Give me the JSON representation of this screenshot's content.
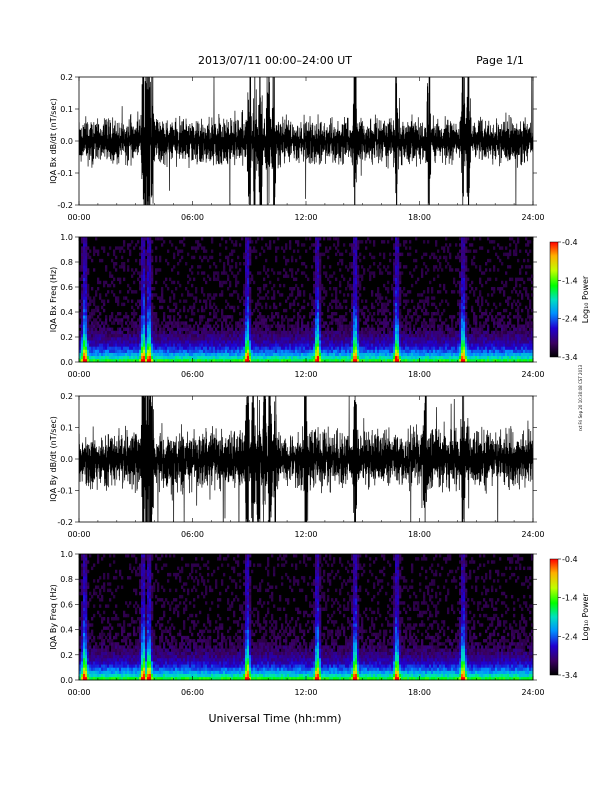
{
  "header": {
    "date_range": "2013/07/11  00:00–24:00 UT",
    "page": "Page 1/1"
  },
  "xlabel": "Universal Time (hh:mm)",
  "side_note": "rxt Fri Sep 20 10:30:08 CST 2013",
  "chart_data": [
    {
      "type": "line",
      "ylabel": "IQA Bx dB/dt (nT/sec)",
      "xlim": [
        0,
        24
      ],
      "ylim": [
        -0.2,
        0.2
      ],
      "yticks": [
        "0.2",
        "0.1",
        "0.0",
        "-0.1",
        "-0.2"
      ],
      "xticks": [
        "00:00",
        "06:00",
        "12:00",
        "18:00",
        "24:00"
      ],
      "burst_hours": [
        3.4,
        3.55,
        3.7,
        3.85,
        9.0,
        9.3,
        9.6,
        10.0,
        10.3,
        14.6,
        16.8,
        18.5,
        20.3,
        20.6
      ],
      "base_amplitude": 0.06
    },
    {
      "type": "heatmap",
      "ylabel": "IQA Bx Freq (Hz)",
      "xlim": [
        0,
        24
      ],
      "ylim": [
        0.0,
        1.0
      ],
      "yticks": [
        "1.0",
        "0.8",
        "0.6",
        "0.4",
        "0.2",
        "0.0"
      ],
      "xticks": [
        "00:00",
        "06:00",
        "12:00",
        "18:00",
        "24:00"
      ],
      "colorbar": {
        "label": "Log₁₀ Power",
        "ticks": [
          "-0.4",
          "-1.4",
          "-2.4",
          "-3.4"
        ],
        "range": [
          -3.4,
          -0.4
        ]
      },
      "bright_hours": [
        0.3,
        3.4,
        3.7,
        8.9,
        12.6,
        14.6,
        16.8,
        20.3
      ]
    },
    {
      "type": "line",
      "ylabel": "IQA By dB/dt (nT/sec)",
      "xlim": [
        0,
        24
      ],
      "ylim": [
        -0.2,
        0.2
      ],
      "yticks": [
        "0.2",
        "0.1",
        "0.0",
        "-0.1",
        "-0.2"
      ],
      "xticks": [
        "00:00",
        "06:00",
        "12:00",
        "18:00",
        "24:00"
      ],
      "burst_hours": [
        3.4,
        3.55,
        3.7,
        3.85,
        8.9,
        9.2,
        9.5,
        9.8,
        10.1,
        10.4,
        12.0,
        14.6,
        18.3,
        20.3
      ],
      "base_amplitude": 0.08
    },
    {
      "type": "heatmap",
      "ylabel": "IQA By Freq (Hz)",
      "xlim": [
        0,
        24
      ],
      "ylim": [
        0.0,
        1.0
      ],
      "yticks": [
        "1.0",
        "0.8",
        "0.6",
        "0.4",
        "0.2",
        "0.0"
      ],
      "xticks": [
        "00:00",
        "06:00",
        "12:00",
        "18:00",
        "24:00"
      ],
      "colorbar": {
        "label": "Log₁₀ Power",
        "ticks": [
          "-0.4",
          "-1.4",
          "-2.4",
          "-3.4"
        ],
        "range": [
          -3.4,
          -0.4
        ]
      },
      "bright_hours": [
        0.3,
        3.4,
        3.7,
        8.9,
        12.6,
        14.6,
        16.8,
        20.3
      ]
    }
  ]
}
